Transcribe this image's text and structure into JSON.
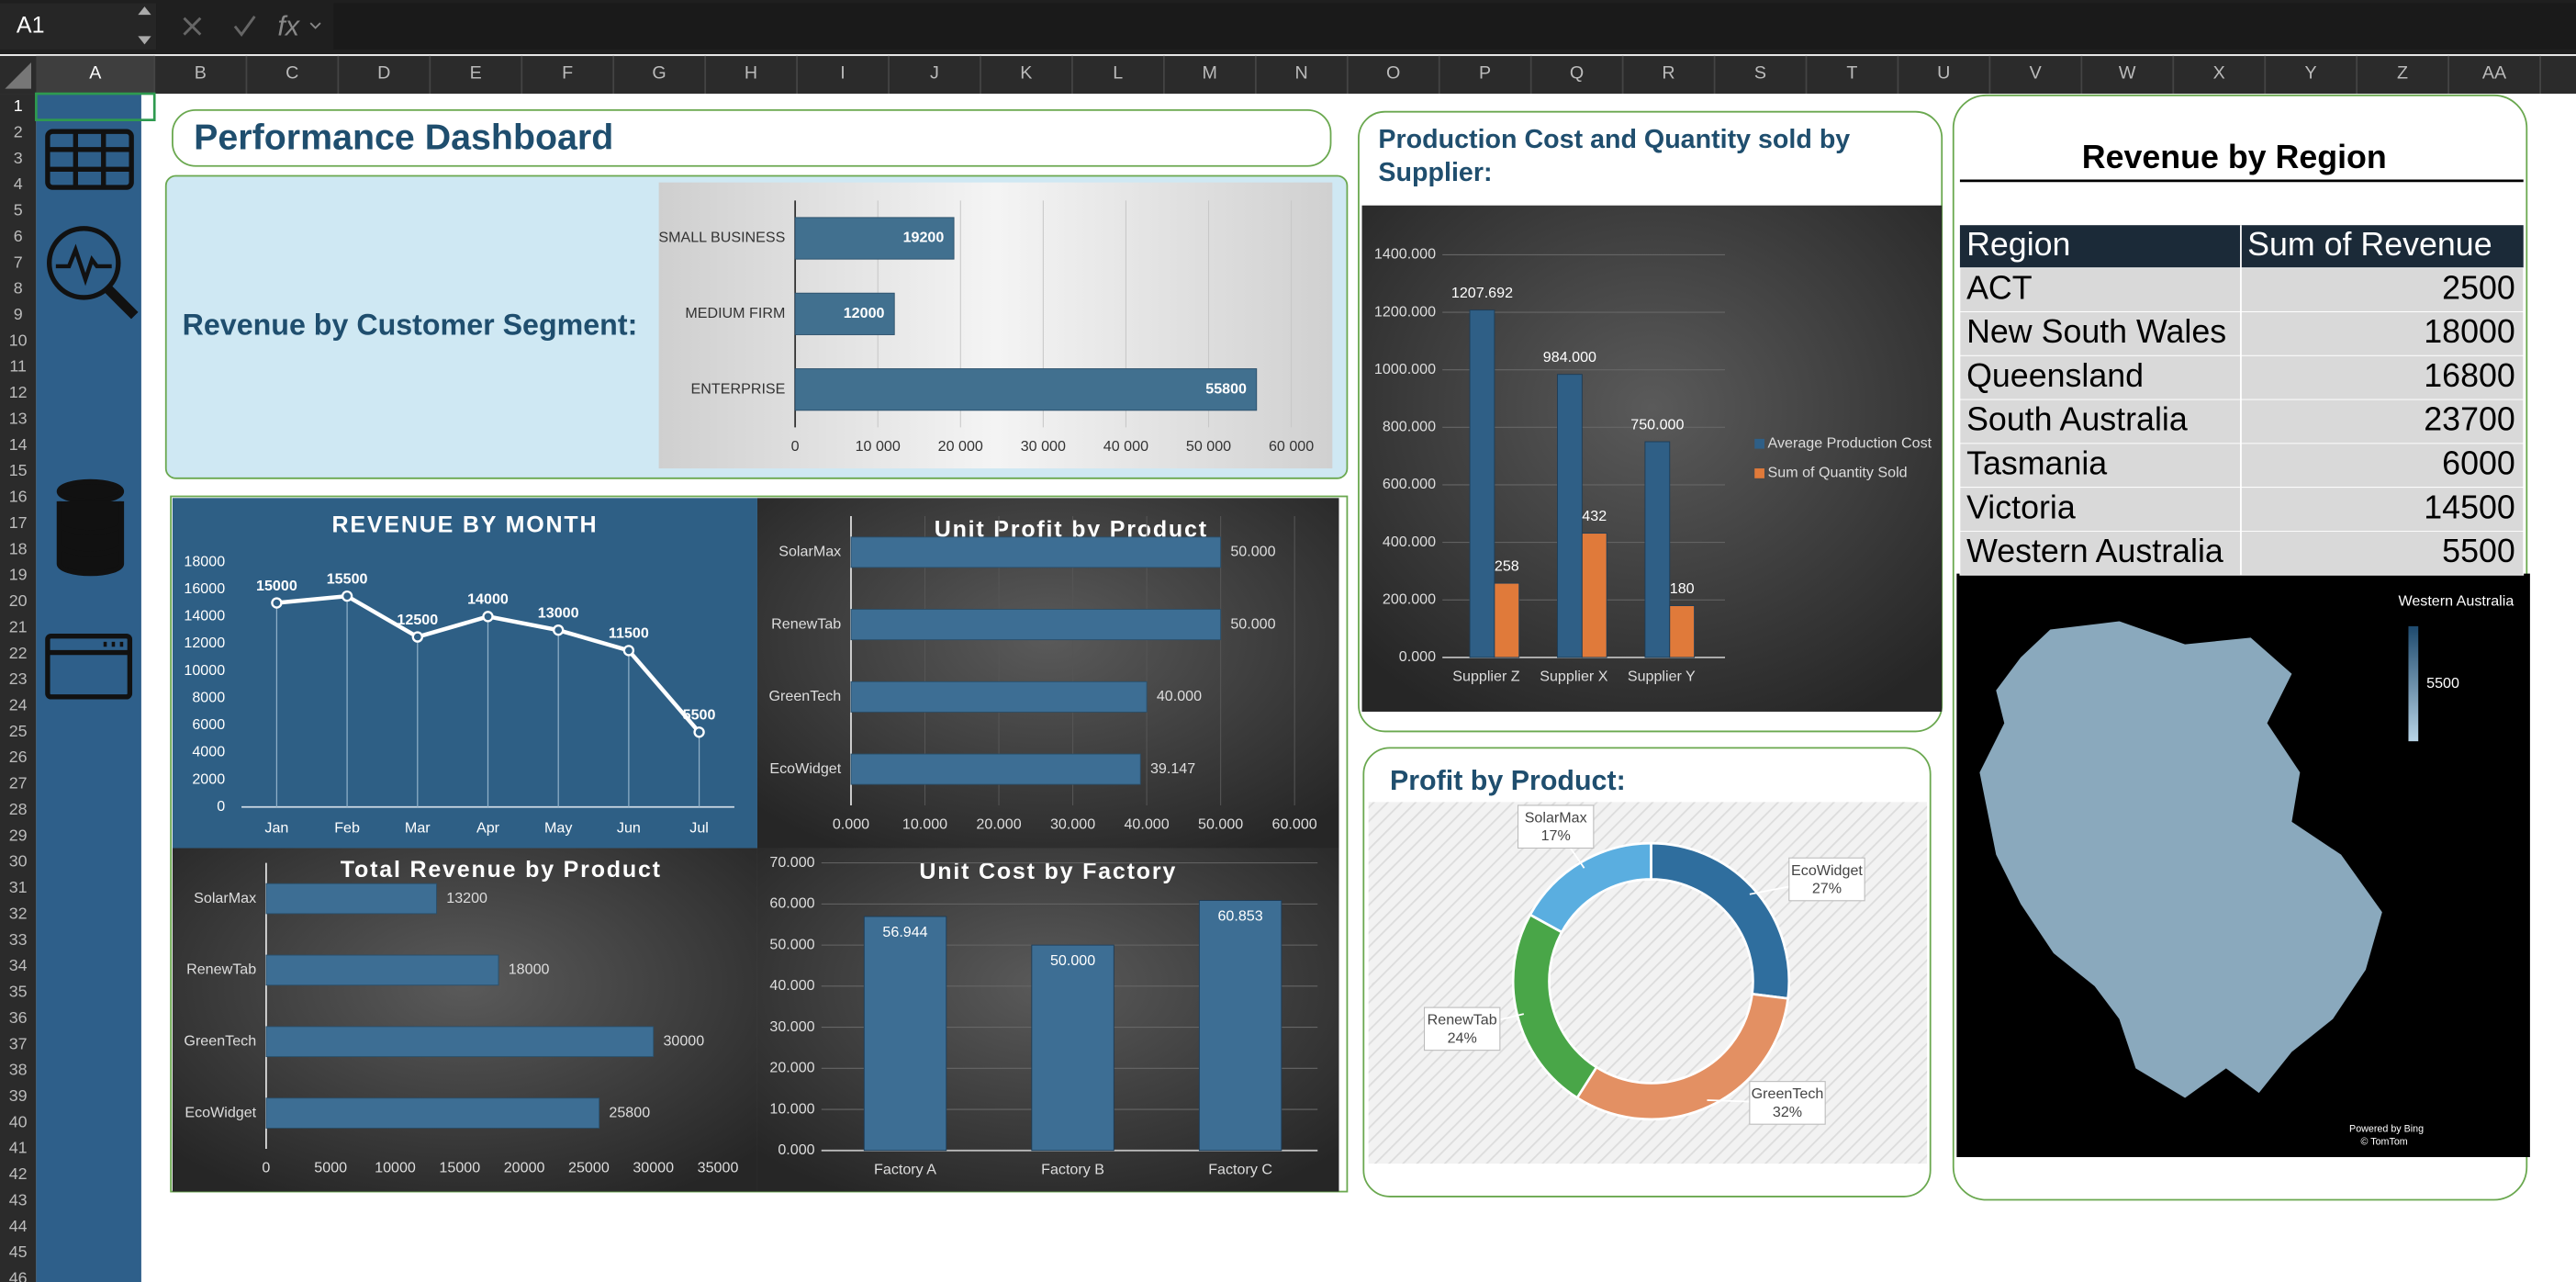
{
  "name_box": "A1",
  "formula_icon": "fx",
  "columns": [
    "A",
    "B",
    "C",
    "D",
    "E",
    "F",
    "G",
    "H",
    "I",
    "J",
    "K",
    "L",
    "M",
    "N",
    "O",
    "P",
    "Q",
    "R",
    "S",
    "T",
    "U",
    "V",
    "W",
    "X",
    "Y",
    "Z",
    "AA"
  ],
  "rows": [
    1,
    2,
    3,
    4,
    5,
    6,
    7,
    8,
    9,
    10,
    11,
    12,
    13,
    14,
    15,
    16,
    17,
    18,
    19,
    20,
    21,
    22,
    23,
    24,
    25,
    26,
    27,
    28,
    29,
    30,
    31,
    32,
    33,
    34,
    35,
    36,
    37,
    38,
    39,
    40,
    41,
    42,
    43,
    44,
    45,
    46
  ],
  "dashboard_title": "Performance Dashboard",
  "chart_data": [
    {
      "type": "hbar",
      "title": "Revenue by Customer Segment:",
      "categories": [
        "SMALL BUSINESS",
        "MEDIUM FIRM",
        "ENTERPRISE"
      ],
      "values": [
        19200,
        12000,
        55800
      ],
      "color": "#41708f",
      "xlim": [
        0,
        60000
      ],
      "xticks": [
        0,
        {
          "value": 10000,
          "label": "10 000"
        },
        {
          "value": 20000,
          "label": "20 000"
        },
        {
          "value": 30000,
          "label": "30 000"
        },
        {
          "value": 40000,
          "label": "40 000"
        },
        {
          "value": 50000,
          "label": "50 000"
        },
        {
          "value": 60000,
          "label": "60 000"
        }
      ],
      "grid": true
    },
    {
      "type": "line",
      "title": "REVENUE BY MONTH",
      "categories": [
        "Jan",
        "Feb",
        "Mar",
        "Apr",
        "May",
        "Jun",
        "Jul"
      ],
      "values": [
        15000,
        15500,
        12500,
        14000,
        13000,
        11500,
        5500
      ],
      "color": "#ffffff",
      "ylim": [
        0,
        18000
      ],
      "yticks": [
        0,
        2000,
        4000,
        6000,
        8000,
        10000,
        12000,
        14000,
        16000,
        18000
      ],
      "grid": false
    },
    {
      "type": "hbar",
      "title": "Unit Profit by Product",
      "categories": [
        "SolarMax",
        "RenewTab",
        "GreenTech",
        "EcoWidget"
      ],
      "values": [
        50,
        50,
        40,
        39.147
      ],
      "value_labels": [
        "50.000",
        "50.000",
        "40.000",
        "39.147"
      ],
      "color": "#3d6e94",
      "xlim": [
        0,
        60
      ],
      "xticks": [
        {
          "value": 0,
          "label": "0.000"
        },
        {
          "value": 10,
          "label": "10.000"
        },
        {
          "value": 20,
          "label": "20.000"
        },
        {
          "value": 30,
          "label": "30.000"
        },
        {
          "value": 40,
          "label": "40.000"
        },
        {
          "value": 50,
          "label": "50.000"
        },
        {
          "value": 60,
          "label": "60.000"
        }
      ],
      "grid": true
    },
    {
      "type": "hbar",
      "title": "Total Revenue by Product",
      "categories": [
        "SolarMax",
        "RenewTab",
        "GreenTech",
        "EcoWidget"
      ],
      "values": [
        13200,
        18000,
        30000,
        25800
      ],
      "color": "#3d6e94",
      "xlim": [
        0,
        35000
      ],
      "xticks": [
        0,
        5000,
        10000,
        15000,
        20000,
        25000,
        30000,
        35000
      ],
      "grid": false
    },
    {
      "type": "bar",
      "title": "Unit Cost by Factory",
      "categories": [
        "Factory A",
        "Factory B",
        "Factory C"
      ],
      "values": [
        56.944,
        50,
        60.853
      ],
      "value_labels": [
        "56.944",
        "50.000",
        "60.853"
      ],
      "color": "#3d6e94",
      "ylim": [
        0,
        70
      ],
      "yticks": [
        {
          "value": 0,
          "label": "0.000"
        },
        {
          "value": 10,
          "label": "10.000"
        },
        {
          "value": 20,
          "label": "20.000"
        },
        {
          "value": 30,
          "label": "30.000"
        },
        {
          "value": 40,
          "label": "40.000"
        },
        {
          "value": 50,
          "label": "50.000"
        },
        {
          "value": 60,
          "label": "60.000"
        },
        {
          "value": 70,
          "label": "70.000"
        }
      ],
      "grid": true
    },
    {
      "type": "grouped-bar",
      "title": "Production Cost and Quantity sold by Supplier:",
      "categories": [
        "Supplier Z",
        "Supplier X",
        "Supplier Y"
      ],
      "series": [
        {
          "name": "Average Production Cost",
          "color": "#2f5f86",
          "values": [
            1207.692,
            984,
            750
          ],
          "value_labels": [
            "1207.692",
            "984.000",
            "750.000"
          ]
        },
        {
          "name": "Sum of Quantity Sold",
          "color": "#e07a3a",
          "values": [
            258,
            432,
            180
          ]
        }
      ],
      "ylim": [
        0,
        1400
      ],
      "yticks": [
        {
          "value": 0,
          "label": "0.000"
        },
        {
          "value": 200,
          "label": "200.000"
        },
        {
          "value": 400,
          "label": "400.000"
        },
        {
          "value": 600,
          "label": "600.000"
        },
        {
          "value": 800,
          "label": "800.000"
        },
        {
          "value": 1000,
          "label": "1000.000"
        },
        {
          "value": 1200,
          "label": "1200.000"
        },
        {
          "value": 1400,
          "label": "1400.000"
        }
      ],
      "grid": true
    },
    {
      "type": "pie",
      "title": "Profit by Product:",
      "categories": [
        "EcoWidget",
        "GreenTech",
        "RenewTab",
        "SolarMax"
      ],
      "values": [
        27,
        32,
        24,
        17
      ],
      "value_labels": [
        "27%",
        "32%",
        "24%",
        "17%"
      ],
      "colors": [
        "#2f6e9e",
        "#e39063",
        "#49a648",
        "#5aaee0"
      ],
      "donut": true
    }
  ],
  "region_table": {
    "title": "Revenue by Region",
    "header": [
      "Region",
      "Sum of Revenue"
    ],
    "rows": [
      [
        "ACT",
        2500
      ],
      [
        "New South Wales",
        18000
      ],
      [
        "Queensland",
        16800
      ],
      [
        "South Australia",
        23700
      ],
      [
        "Tasmania",
        6000
      ],
      [
        "Victoria",
        14500
      ],
      [
        "Western Australia",
        5500
      ]
    ]
  },
  "map": {
    "legend_title": "Western Australia",
    "legend_value": 5500,
    "credits": [
      "Powered by Bing",
      "© TomTom"
    ]
  }
}
